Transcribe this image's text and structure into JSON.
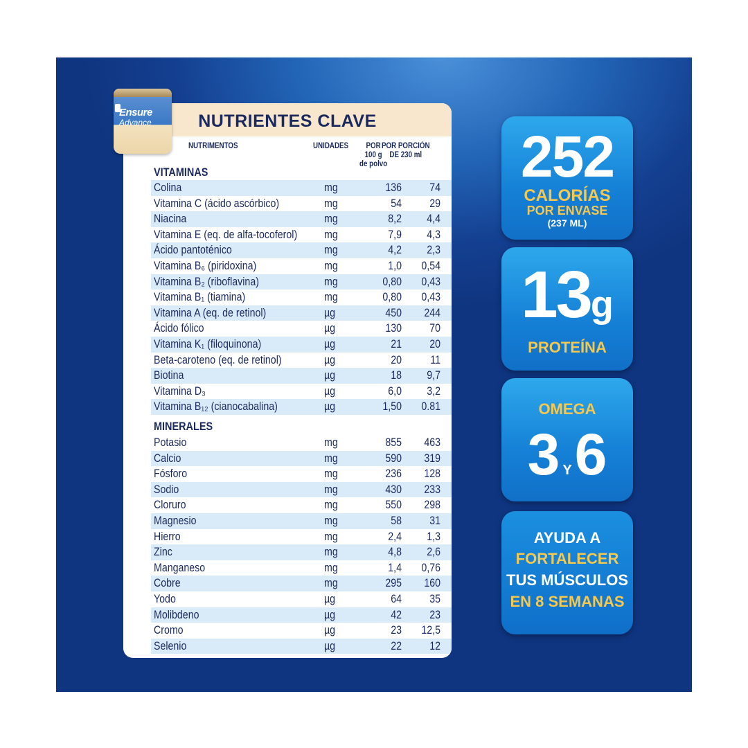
{
  "product": {
    "brand": "Ensure",
    "variant": "Advance"
  },
  "table": {
    "title": "NUTRIENTES CLAVE",
    "headers": {
      "nutrient": "NUTRIMENTOS",
      "units": "UNIDADES",
      "per100_l1": "POR",
      "per100_l2": "100 g",
      "per100_l3": "de polvo",
      "perServing_l1": "POR PORCIÓN",
      "perServing_l2": "DE 230 ml"
    },
    "vitamins_label": "VITAMINAS",
    "vitamins": [
      {
        "name": "Colina",
        "unit": "mg",
        "per100": "136",
        "perServing": "74"
      },
      {
        "name": "Vitamina C (ácido ascórbico)",
        "unit": "mg",
        "per100": "54",
        "perServing": "29"
      },
      {
        "name": "Niacina",
        "unit": "mg",
        "per100": "8,2",
        "perServing": "4,4"
      },
      {
        "name": "Vitamina E (eq. de alfa-tocoferol)",
        "unit": "mg",
        "per100": "7,9",
        "perServing": "4,3"
      },
      {
        "name": "Ácido pantoténico",
        "unit": "mg",
        "per100": "4,2",
        "perServing": "2,3"
      },
      {
        "name": "Vitamina B₆ (piridoxina)",
        "unit": "mg",
        "per100": "1,0",
        "perServing": "0,54"
      },
      {
        "name": "Vitamina B₂ (riboflavina)",
        "unit": "mg",
        "per100": "0,80",
        "perServing": "0,43"
      },
      {
        "name": "Vitamina B₁ (tiamina)",
        "unit": "mg",
        "per100": "0,80",
        "perServing": "0,43"
      },
      {
        "name": "Vitamina A (eq. de retinol)",
        "unit": "µg",
        "per100": "450",
        "perServing": "244"
      },
      {
        "name": "Ácido fólico",
        "unit": "µg",
        "per100": "130",
        "perServing": "70"
      },
      {
        "name": "Vitamina K₁ (filoquinona)",
        "unit": "µg",
        "per100": "21",
        "perServing": "20"
      },
      {
        "name": "Beta-caroteno (eq. de retinol)",
        "unit": "µg",
        "per100": "20",
        "perServing": "11"
      },
      {
        "name": "Biotina",
        "unit": "µg",
        "per100": "18",
        "perServing": "9,7"
      },
      {
        "name": "Vitamina D₃",
        "unit": "µg",
        "per100": "6,0",
        "perServing": "3,2"
      },
      {
        "name": "Vitamina B₁₂ (cianocabalina)",
        "unit": "µg",
        "per100": "1,50",
        "perServing": "0.81"
      }
    ],
    "minerals_label": "MINERALES",
    "minerals": [
      {
        "name": "Potasio",
        "unit": "mg",
        "per100": "855",
        "perServing": "463"
      },
      {
        "name": "Calcio",
        "unit": "mg",
        "per100": "590",
        "perServing": "319"
      },
      {
        "name": "Fósforo",
        "unit": "mg",
        "per100": "236",
        "perServing": "128"
      },
      {
        "name": "Sodio",
        "unit": "mg",
        "per100": "430",
        "perServing": "233"
      },
      {
        "name": "Cloruro",
        "unit": "mg",
        "per100": "550",
        "perServing": "298"
      },
      {
        "name": "Magnesio",
        "unit": "mg",
        "per100": "58",
        "perServing": "31"
      },
      {
        "name": "Hierro",
        "unit": "mg",
        "per100": "2,4",
        "perServing": "1,3"
      },
      {
        "name": "Zinc",
        "unit": "mg",
        "per100": "4,8",
        "perServing": "2,6"
      },
      {
        "name": "Manganeso",
        "unit": "mg",
        "per100": "1,4",
        "perServing": "0,76"
      },
      {
        "name": "Cobre",
        "unit": "mg",
        "per100": "295",
        "perServing": "160"
      },
      {
        "name": "Yodo",
        "unit": "µg",
        "per100": "64",
        "perServing": "35"
      },
      {
        "name": "Molibdeno",
        "unit": "µg",
        "per100": "42",
        "perServing": "23"
      },
      {
        "name": "Cromo",
        "unit": "µg",
        "per100": "23",
        "perServing": "12,5"
      },
      {
        "name": "Selenio",
        "unit": "µg",
        "per100": "22",
        "perServing": "12"
      }
    ]
  },
  "badges": {
    "calories": {
      "value": "252",
      "line1": "CALORÍAS",
      "line2": "POR ENVASE",
      "line3": "(237 ML)"
    },
    "protein": {
      "value": "13",
      "unit": "g",
      "label": "PROTEÍNA"
    },
    "omega": {
      "label": "OMEGA",
      "a": "3",
      "y": "Y",
      "b": "6"
    },
    "muscle": {
      "line1": "AYUDA A",
      "line2": "FORTALECER",
      "line3": "TUS MÚSCULOS",
      "line4": "EN 8 SEMANAS"
    }
  },
  "colors": {
    "navy": "#1b2a5e",
    "gold": "#f6c84d",
    "stripe": "#d9ebf8",
    "header": "#f8e7cc"
  }
}
